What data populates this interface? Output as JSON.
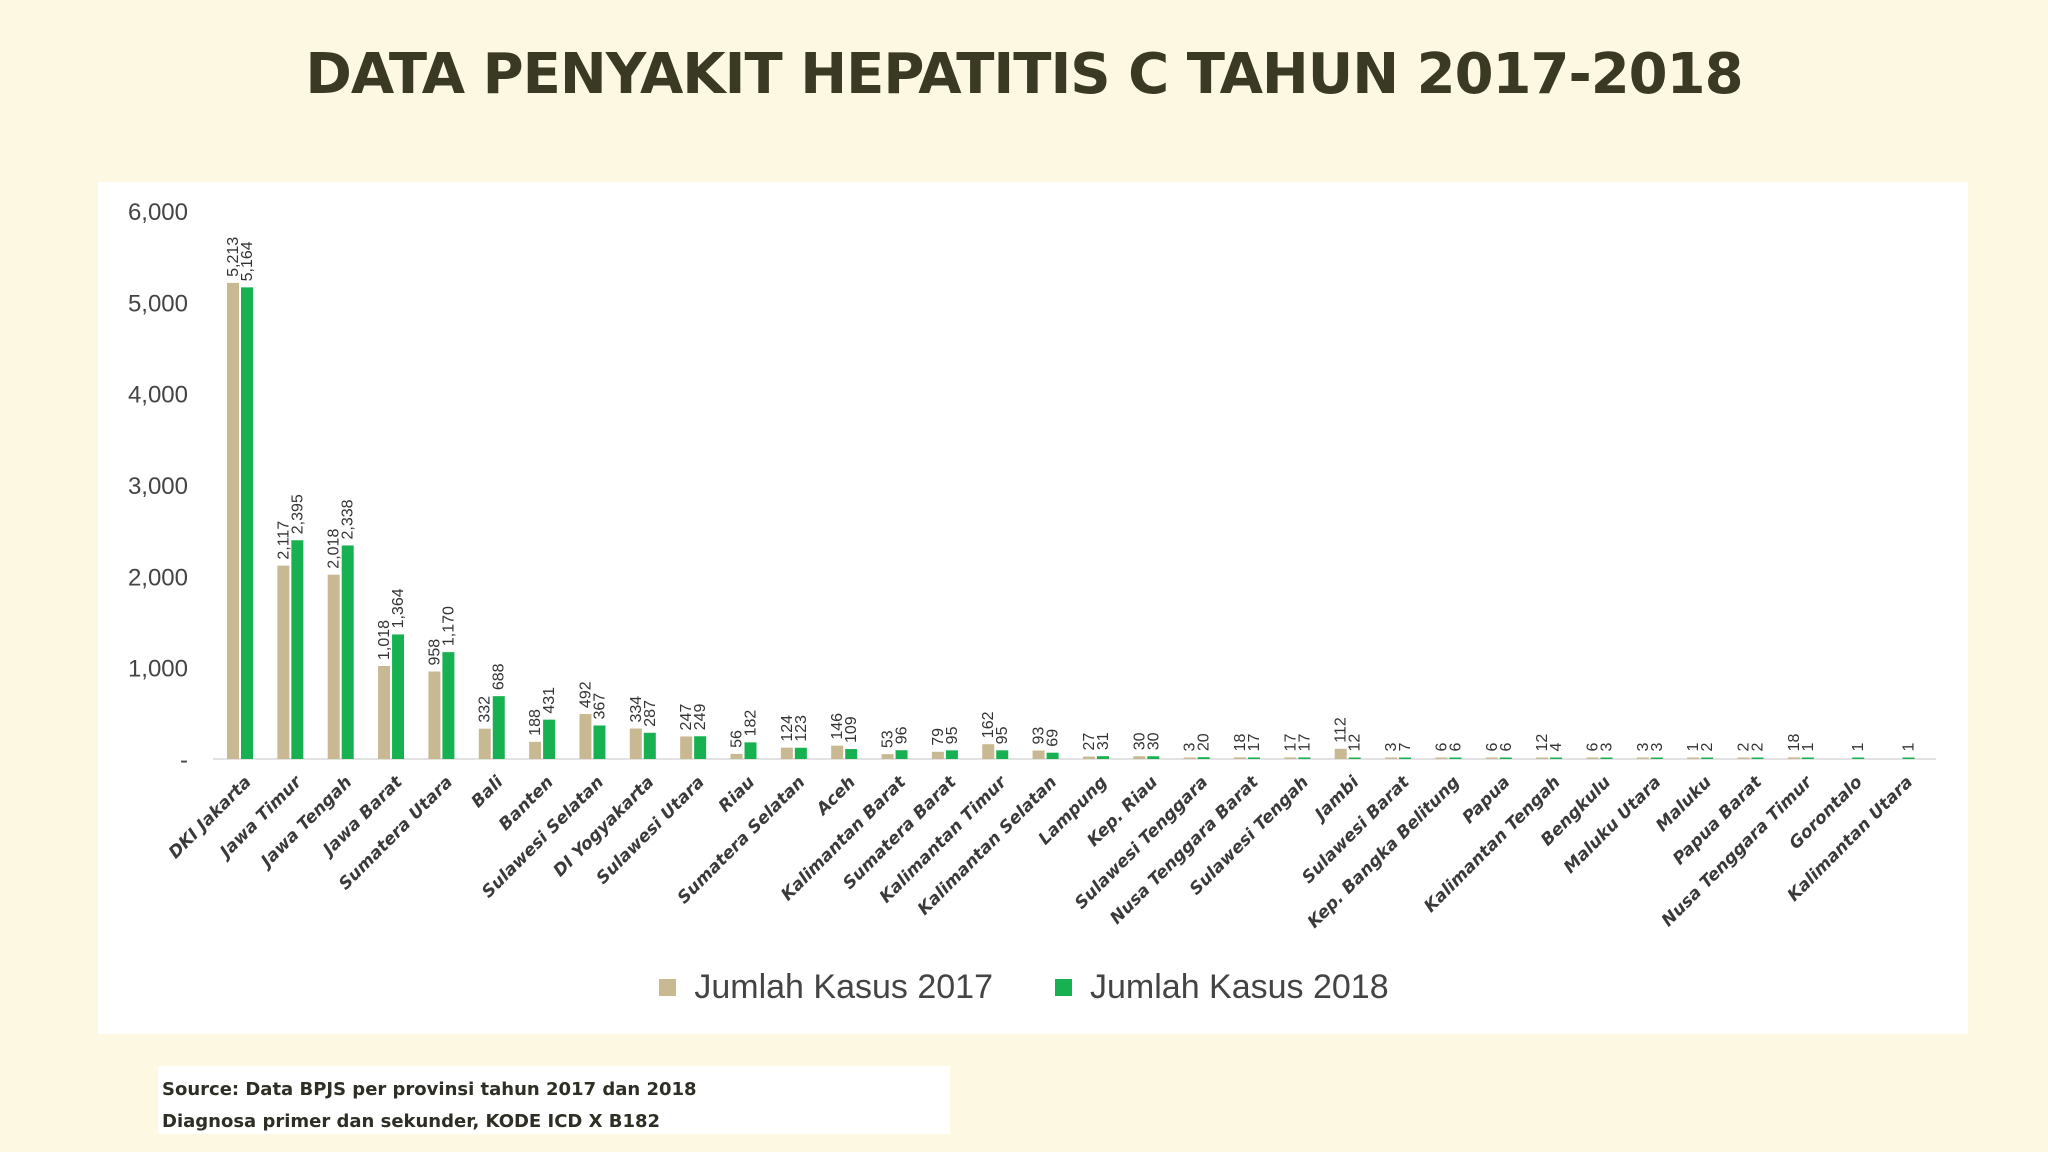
{
  "title": "DATA PENYAKIT HEPATITIS C TAHUN 2017-2018",
  "source": {
    "line1": "Source: Data BPJS per provinsi tahun 2017 dan 2018",
    "line2": "Diagnosa primer dan sekunder, KODE ICD X B182"
  },
  "colors": {
    "s2017": "#c9b992",
    "s2018": "#18b152"
  },
  "chart_data": {
    "type": "bar",
    "title": "",
    "xlabel": "",
    "ylabel": "",
    "ylim": [
      0,
      6000
    ],
    "yticks": [
      0,
      1000,
      2000,
      3000,
      4000,
      5000,
      6000
    ],
    "ytick_labels": [
      "-",
      "1,000",
      "2,000",
      "3,000",
      "4,000",
      "5,000",
      "6,000"
    ],
    "legend": "bottom",
    "grid": false,
    "categories": [
      "DKI Jakarta",
      "Jawa Timur",
      "Jawa Tengah",
      "Jawa Barat",
      "Sumatera Utara",
      "Bali",
      "Banten",
      "Sulawesi Selatan",
      "DI Yogyakarta",
      "Sulawesi Utara",
      "Riau",
      "Sumatera Selatan",
      "Aceh",
      "Kalimantan Barat",
      "Sumatera Barat",
      "Kalimantan Timur",
      "Kalimantan Selatan",
      "Lampung",
      "Kep. Riau",
      "Sulawesi Tenggara",
      "Nusa Tenggara Barat",
      "Sulawesi Tengah",
      "Jambi",
      "Sulawesi Barat",
      "Kep. Bangka Belitung",
      "Papua",
      "Kalimantan Tengah",
      "Bengkulu",
      "Maluku Utara",
      "Maluku",
      "Papua Barat",
      "Nusa Tenggara Timur",
      "Gorontalo",
      "Kalimantan Utara"
    ],
    "series": [
      {
        "name": "Jumlah Kasus 2017",
        "values": [
          5213,
          2117,
          2018,
          1018,
          958,
          332,
          188,
          492,
          334,
          247,
          56,
          124,
          146,
          53,
          79,
          162,
          93,
          27,
          30,
          3,
          18,
          17,
          112,
          3,
          6,
          6,
          12,
          6,
          3,
          1,
          2,
          18,
          null,
          null
        ],
        "labels": [
          "5,213",
          "2,117",
          "2,018",
          "1,018",
          "958",
          "332",
          "188",
          "492",
          "334",
          "247",
          "56",
          "124",
          "146",
          "53",
          "79",
          "162",
          "93",
          "27",
          "30",
          "3",
          "18",
          "17",
          "112",
          "3",
          "6",
          "6",
          "12",
          "6",
          "3",
          "1",
          "2",
          "18",
          "",
          ""
        ]
      },
      {
        "name": "Jumlah Kasus 2018",
        "values": [
          5164,
          2395,
          2338,
          1364,
          1170,
          688,
          431,
          367,
          287,
          249,
          182,
          123,
          109,
          96,
          95,
          95,
          69,
          31,
          30,
          20,
          17,
          17,
          12,
          7,
          6,
          6,
          4,
          3,
          3,
          2,
          2,
          1,
          1,
          1
        ],
        "labels": [
          "5,164",
          "2,395",
          "2,338",
          "1,364",
          "1,170",
          "688",
          "431",
          "367",
          "287",
          "249",
          "182",
          "123",
          "109",
          "96",
          "95",
          "95",
          "69",
          "31",
          "30",
          "20",
          "17",
          "17",
          "12",
          "7",
          "6",
          "6",
          "4",
          "3",
          "3",
          "2",
          "2",
          "1",
          "1",
          "1"
        ]
      }
    ]
  }
}
